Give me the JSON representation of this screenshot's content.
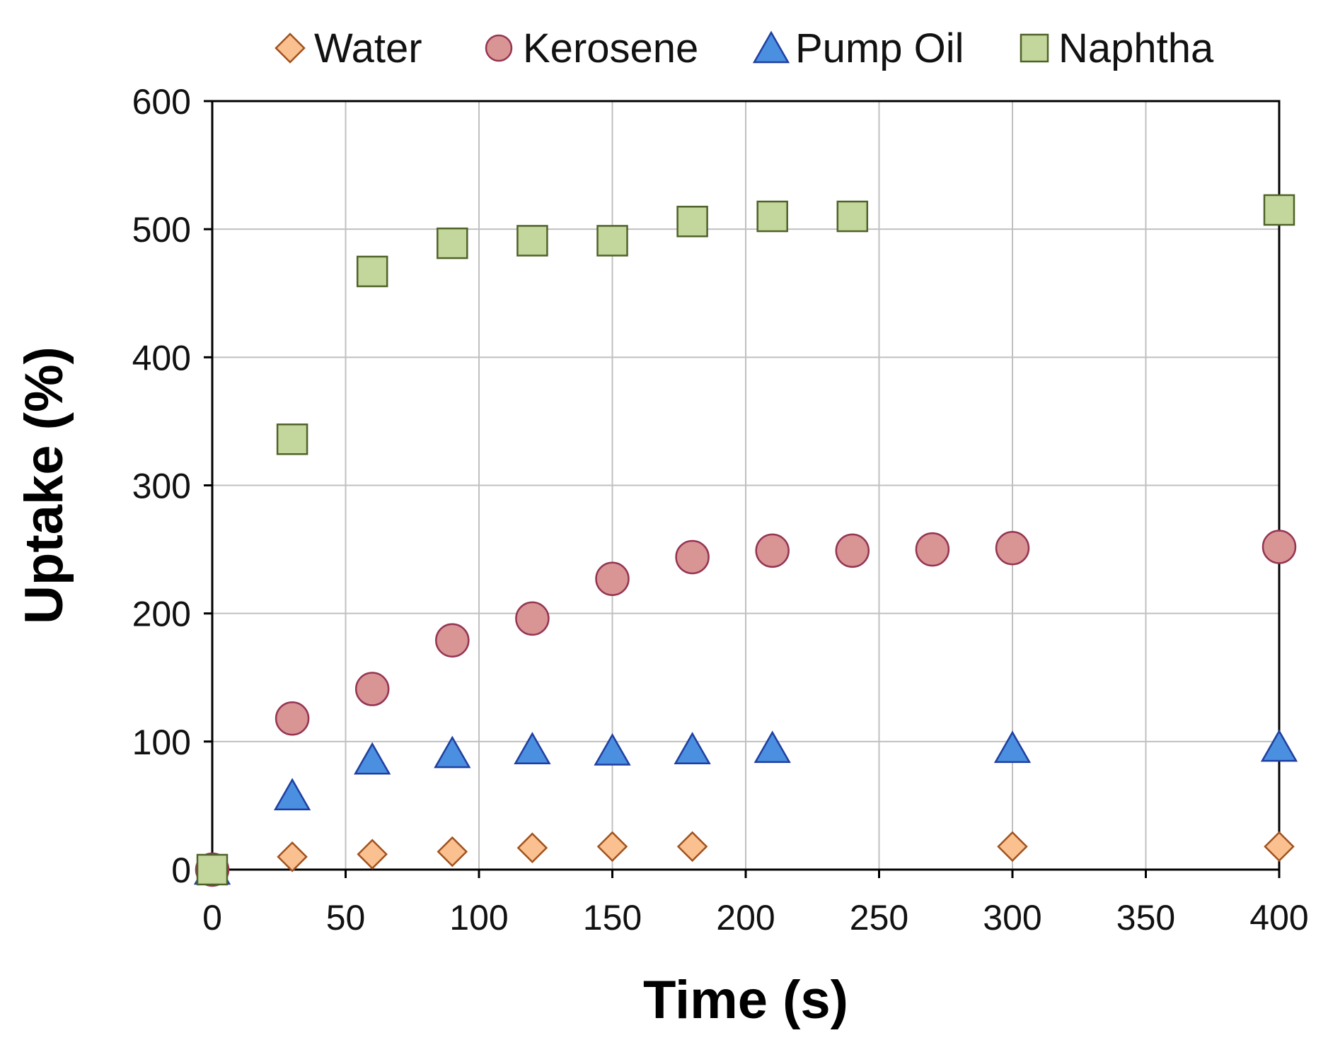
{
  "chart_data": {
    "type": "scatter",
    "title": "",
    "xlabel": "Time (s)",
    "ylabel": "Uptake (%)",
    "xlim": [
      0,
      400
    ],
    "ylim": [
      0,
      600
    ],
    "xticks": [
      0,
      50,
      100,
      150,
      200,
      250,
      300,
      350,
      400
    ],
    "yticks": [
      0,
      100,
      200,
      300,
      400,
      500,
      600
    ],
    "xtick_labels": [
      "0",
      "50",
      "100",
      "150",
      "200",
      "250",
      "300",
      "350",
      "400"
    ],
    "ytick_labels": [
      "0",
      "100",
      "200",
      "300",
      "400",
      "500",
      "600"
    ],
    "grid": true,
    "legend_position": "top",
    "series": [
      {
        "name": "Water",
        "marker": "diamond",
        "fill": "#fac090",
        "stroke": "#a0521d",
        "points": [
          [
            0,
            0
          ],
          [
            30,
            10
          ],
          [
            60,
            12
          ],
          [
            90,
            14
          ],
          [
            120,
            17
          ],
          [
            150,
            18
          ],
          [
            180,
            18
          ],
          [
            300,
            18
          ],
          [
            400,
            18
          ]
        ]
      },
      {
        "name": "Kerosene",
        "marker": "circle",
        "fill": "#d99594",
        "stroke": "#953553",
        "points": [
          [
            0,
            0
          ],
          [
            30,
            118
          ],
          [
            60,
            141
          ],
          [
            90,
            179
          ],
          [
            120,
            196
          ],
          [
            150,
            227
          ],
          [
            180,
            244
          ],
          [
            210,
            249
          ],
          [
            240,
            249
          ],
          [
            270,
            250
          ],
          [
            300,
            251
          ],
          [
            400,
            252
          ]
        ]
      },
      {
        "name": "Pump Oil",
        "marker": "triangle",
        "fill": "#4a8fe0",
        "stroke": "#1f3f9f",
        "points": [
          [
            0,
            0
          ],
          [
            30,
            58
          ],
          [
            60,
            86
          ],
          [
            90,
            91
          ],
          [
            120,
            94
          ],
          [
            150,
            93
          ],
          [
            180,
            94
          ],
          [
            210,
            95
          ],
          [
            300,
            95
          ],
          [
            400,
            96
          ]
        ]
      },
      {
        "name": "Naphtha",
        "marker": "square",
        "fill": "#c3d69b",
        "stroke": "#4f6228",
        "points": [
          [
            0,
            0
          ],
          [
            30,
            336
          ],
          [
            60,
            467
          ],
          [
            90,
            489
          ],
          [
            120,
            491
          ],
          [
            150,
            491
          ],
          [
            180,
            506
          ],
          [
            210,
            510
          ],
          [
            240,
            510
          ],
          [
            400,
            515
          ]
        ]
      }
    ]
  }
}
